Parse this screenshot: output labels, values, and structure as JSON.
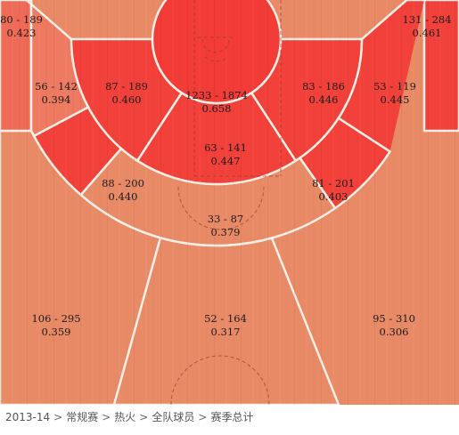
{
  "chart_data": {
    "type": "heatmap",
    "zones": [
      {
        "id": "left-corner-three",
        "made": 80,
        "attempts": 189,
        "label": "80 - 189",
        "pct": "0.423",
        "color": "#ef6a57"
      },
      {
        "id": "left-wing-long-two",
        "made": 56,
        "attempts": 142,
        "label": "56 - 142",
        "pct": "0.394",
        "color": "#ee7a61"
      },
      {
        "id": "left-short-mid",
        "made": 87,
        "attempts": 189,
        "label": "87 - 189",
        "pct": "0.460",
        "color": "#f2413a"
      },
      {
        "id": "restricted-area",
        "made": 1233,
        "attempts": 1874,
        "label": "1233 - 1874",
        "pct": "0.658",
        "color": "#f33c37"
      },
      {
        "id": "right-short-mid",
        "made": 83,
        "attempts": 186,
        "label": "83 - 186",
        "pct": "0.446",
        "color": "#f2413a"
      },
      {
        "id": "right-wing-long-two",
        "made": 53,
        "attempts": 119,
        "label": "53 - 119",
        "pct": "0.445",
        "color": "#f2413a"
      },
      {
        "id": "right-corner-three",
        "made": 131,
        "attempts": 284,
        "label": "131 - 284",
        "pct": "0.461",
        "color": "#f2413a"
      },
      {
        "id": "paint-non-ra",
        "made": 63,
        "attempts": 141,
        "label": "63 - 141",
        "pct": "0.447",
        "color": "#f2413a"
      },
      {
        "id": "left-baseline-long-two",
        "made": 88,
        "attempts": 200,
        "label": "88 - 200",
        "pct": "0.440",
        "color": "#f2413a"
      },
      {
        "id": "right-baseline-long-two",
        "made": 81,
        "attempts": 201,
        "label": "81 - 201",
        "pct": "0.403",
        "color": "#f2413a"
      },
      {
        "id": "top-key-long-two",
        "made": 33,
        "attempts": 87,
        "label": "33 - 87",
        "pct": "0.379",
        "color": "#e98a67"
      },
      {
        "id": "left-wing-three",
        "made": 106,
        "attempts": 295,
        "label": "106 - 295",
        "pct": "0.359",
        "color": "#e98a67"
      },
      {
        "id": "top-key-three",
        "made": 52,
        "attempts": 164,
        "label": "52 - 164",
        "pct": "0.317",
        "color": "#e98a67"
      },
      {
        "id": "right-wing-three",
        "made": 95,
        "attempts": 310,
        "label": "95 - 310",
        "pct": "0.306",
        "color": "#e98a67"
      }
    ]
  },
  "breadcrumb": {
    "items": [
      "2013-14",
      "常规赛",
      "热火",
      "全队球员",
      "赛季总计"
    ],
    "separator": ">"
  },
  "colors": {
    "court_lines": "#f7efe6",
    "hot": "#f33c37",
    "warm": "#ee7a61",
    "cool": "#e98a67"
  }
}
